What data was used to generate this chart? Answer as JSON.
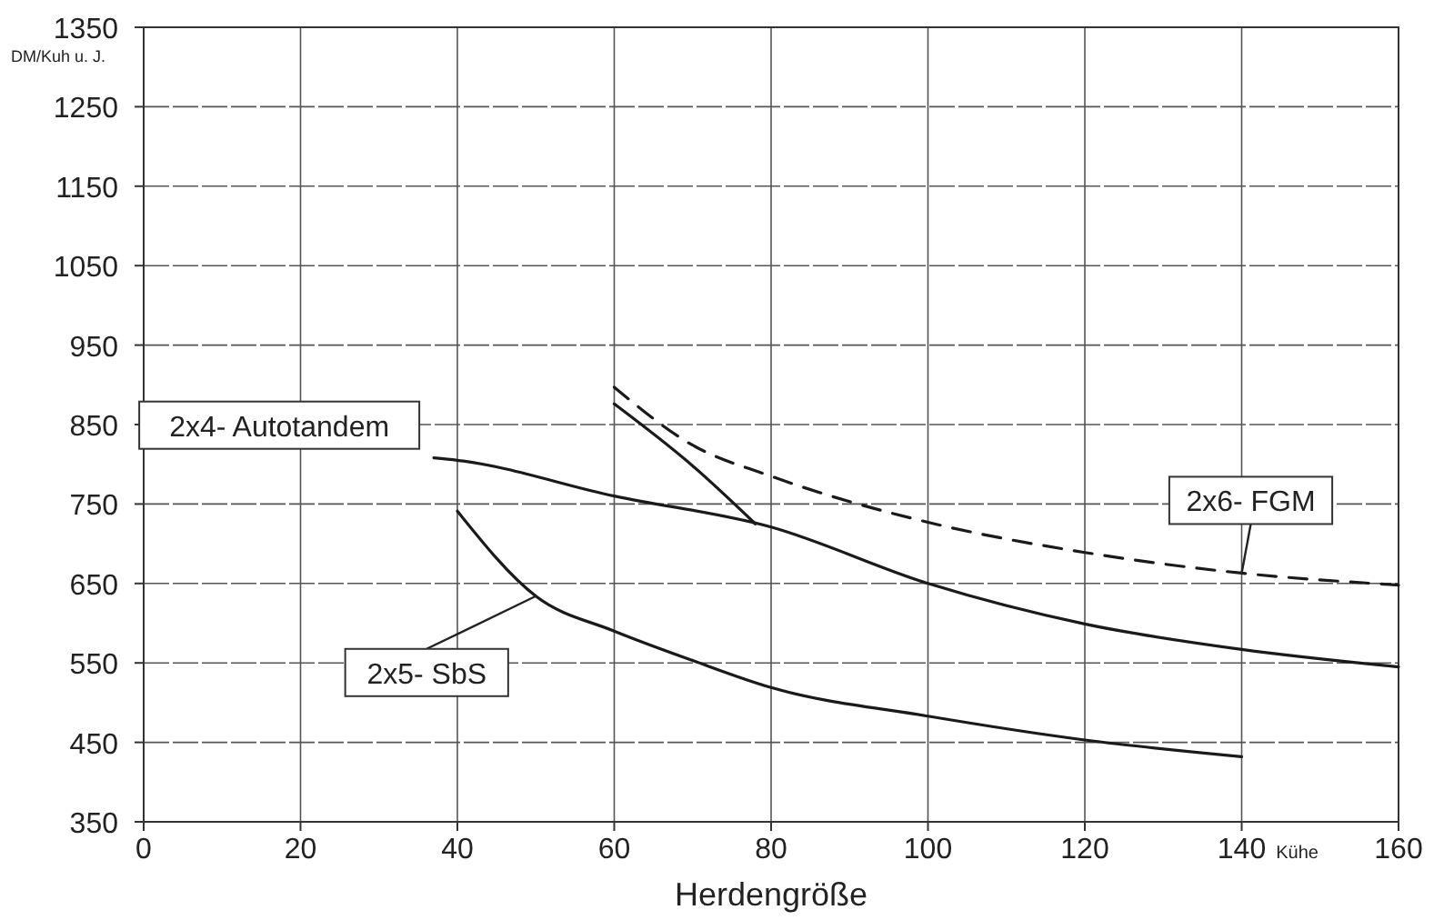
{
  "chart_data": {
    "type": "line",
    "xlabel": "Herdengröße",
    "ylabel": "DM/Kuh u. J.",
    "annotations": [
      "Kühe"
    ],
    "xlim": [
      0,
      160
    ],
    "xticks": [
      0,
      20,
      40,
      60,
      80,
      100,
      120,
      140,
      160
    ],
    "ylim": [
      350,
      1350
    ],
    "yticks": [
      350,
      450,
      550,
      650,
      750,
      850,
      950,
      1050,
      1150,
      1250,
      1350
    ],
    "grid": true,
    "series": [
      {
        "name": "2x4- Autotandem",
        "color": "#1a1a1a",
        "line_style": "solid",
        "x": [
          37,
          40,
          60,
          80,
          100,
          120,
          140,
          160
        ],
        "values": [
          808,
          805,
          760,
          721,
          650,
          599,
          567,
          545
        ]
      },
      {
        "name": "2x5- SbS",
        "color": "#1a1a1a",
        "line_style": "solid",
        "x": [
          40,
          50,
          60,
          70,
          80,
          100,
          120,
          140
        ],
        "values": [
          741,
          634,
          590,
          553,
          519,
          483,
          453,
          432
        ]
      },
      {
        "name": "2x6- FGM",
        "color": "#1a1a1a",
        "line_style": "dashed",
        "x": [
          60,
          70,
          80,
          100,
          120,
          140,
          160
        ],
        "values": [
          897,
          824,
          785,
          727,
          689,
          663,
          648
        ]
      },
      {
        "color": "#1a1a1a",
        "line_style": "solid",
        "x": [
          60,
          70,
          78
        ],
        "values": [
          876,
          798,
          725
        ]
      }
    ]
  }
}
